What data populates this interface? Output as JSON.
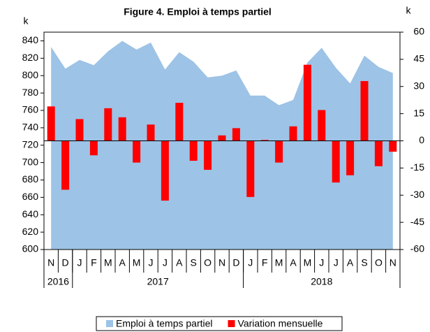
{
  "chart_data": {
    "type": "area_bar",
    "title": "Figure 4. Emploi à temps partiel",
    "ylabel": "k",
    "y2label": "k",
    "categories": [
      "N",
      "D",
      "J",
      "F",
      "M",
      "A",
      "M",
      "J",
      "J",
      "A",
      "S",
      "O",
      "N",
      "D",
      "J",
      "F",
      "M",
      "A",
      "M",
      "J",
      "J",
      "A",
      "S",
      "O",
      "N"
    ],
    "x_groups": [
      {
        "label": "2016",
        "categories": 2
      },
      {
        "label": "2017",
        "categories": 12
      },
      {
        "label": "2018",
        "categories": 11
      }
    ],
    "series": [
      {
        "name": "Emploi à temps partiel",
        "color": "#9dc3e6",
        "kind": "area",
        "values": [
          833,
          808,
          818,
          812,
          828,
          840,
          830,
          838,
          807,
          827,
          816,
          798,
          800,
          806,
          777,
          777,
          766,
          772,
          815,
          832,
          809,
          791,
          823,
          810,
          803
        ]
      },
      {
        "name": "Variation mensuelle",
        "color": "#ff0000",
        "kind": "bar",
        "axis": "y2",
        "values": [
          19,
          -27,
          12,
          -8,
          18,
          13,
          -12,
          9,
          -33,
          21,
          -11,
          -16,
          3,
          7,
          -31,
          0.5,
          -12,
          8,
          42,
          17,
          -23,
          -19,
          33,
          -14,
          -6
        ]
      }
    ],
    "ylim": [
      600,
      850
    ],
    "yticks": [
      600,
      620,
      640,
      660,
      680,
      700,
      720,
      740,
      760,
      780,
      800,
      820,
      840
    ],
    "y2lim": [
      -60,
      60
    ],
    "y2ticks": [
      -60,
      -45,
      -30,
      -15,
      0,
      15,
      30,
      45,
      60
    ],
    "legend": "bottom"
  }
}
